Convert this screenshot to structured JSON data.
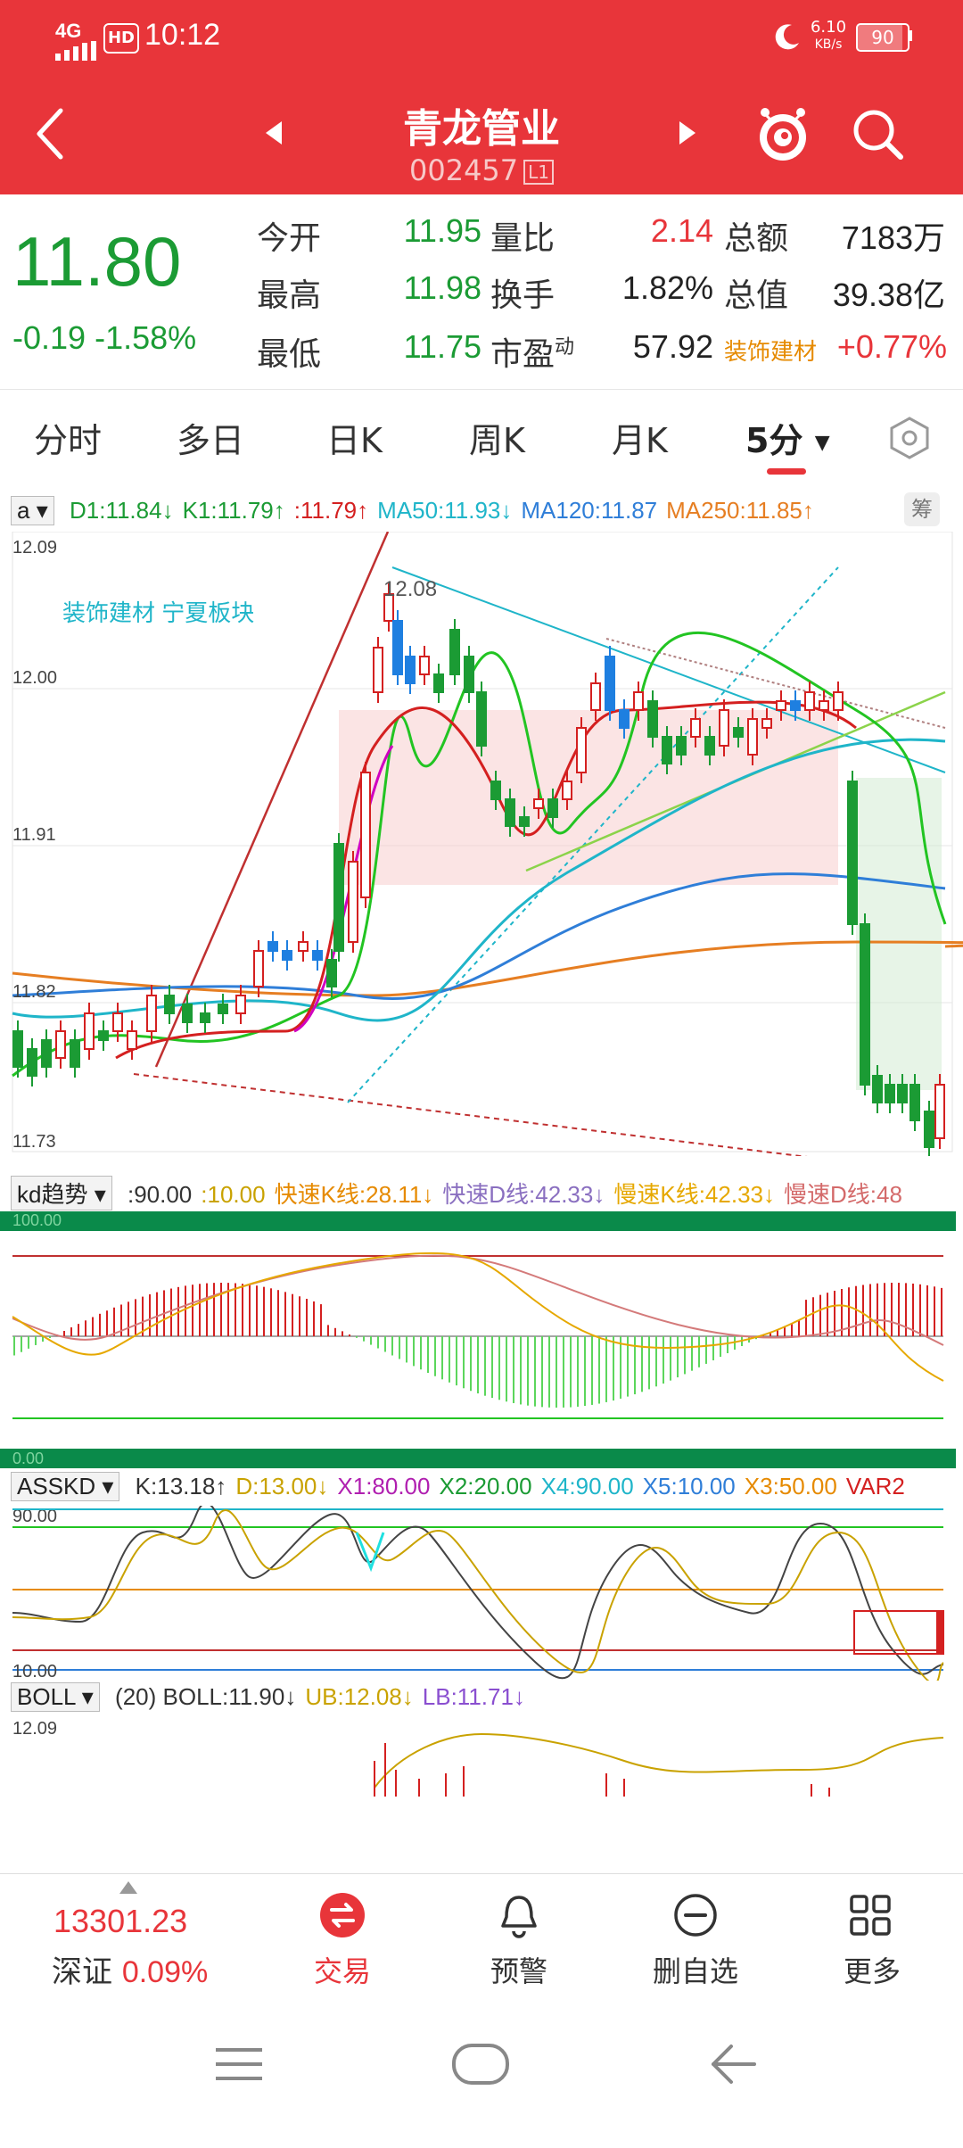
{
  "status_bar": {
    "network": "4G",
    "hd": "HD",
    "time": "10:12",
    "speed_value": "6.10",
    "speed_unit": "KB/s",
    "battery": "90",
    "battery_level": 0.9
  },
  "header": {
    "stock_name": "青龙管业",
    "stock_code": "002457",
    "level_badge": "L1"
  },
  "quote": {
    "price": "11.80",
    "change": "-0.19",
    "change_pct": "-1.58%",
    "open_label": "今开",
    "open": "11.95",
    "high_label": "最高",
    "high": "11.98",
    "low_label": "最低",
    "low": "11.75",
    "vol_ratio_label": "量比",
    "vol_ratio": "2.14",
    "turnover_label": "换手",
    "turnover": "1.82%",
    "pe_label": "市盈",
    "pe_sup": "动",
    "pe": "57.92",
    "amount_label": "总额",
    "amount": "7183万",
    "mktcap_label": "总值",
    "mktcap": "39.38亿",
    "sector_label": "装饰建材",
    "sector_chg": "+0.77%"
  },
  "tabs": [
    "分时",
    "多日",
    "日K",
    "周K",
    "月K",
    "5分"
  ],
  "main_chart": {
    "selector": "a",
    "legend": [
      {
        "text": "D1:11.84↓",
        "color": "#1b9b34"
      },
      {
        "text": "K1:11.79↑",
        "color": "#1b9b34"
      },
      {
        "text": ":11.79↑",
        "color": "#d42020"
      },
      {
        "text": "MA50:11.93↓",
        "color": "#1fb5c9"
      },
      {
        "text": "MA120:11.87",
        "color": "#2f7ed8"
      },
      {
        "text": "MA250:11.85↑",
        "color": "#e67e22"
      }
    ],
    "chip_button": "筹",
    "annotation": "装饰建材 宁夏板块",
    "high_mark": "12.08",
    "y_ticks": [
      "12.09",
      "12.00",
      "11.91",
      "11.82",
      "11.73"
    ]
  },
  "kd_panel": {
    "selector": "kd趋势",
    "legend": [
      {
        "text": ":90.00",
        "color": "#333333"
      },
      {
        "text": ":10.00",
        "color": "#c9a200"
      },
      {
        "text": "快速K线:28.11↓",
        "color": "#e68a00"
      },
      {
        "text": "快速D线:42.33↓",
        "color": "#8a6fc0"
      },
      {
        "text": "慢速K线:42.33↓",
        "color": "#e6a800"
      },
      {
        "text": "慢速D线:48",
        "color": "#d46a6a"
      }
    ],
    "top_label": "100.00",
    "bottom_label": "0.00"
  },
  "asskd_panel": {
    "selector": "ASSKD",
    "legend": [
      {
        "text": "K:13.18↑",
        "color": "#333333"
      },
      {
        "text": "D:13.00↓",
        "color": "#c9a200"
      },
      {
        "text": "X1:80.00",
        "color": "#b01fb0"
      },
      {
        "text": "X2:20.00",
        "color": "#1b9b34"
      },
      {
        "text": "X4:90.00",
        "color": "#1fb5c9"
      },
      {
        "text": "X5:10.00",
        "color": "#2f7ed8"
      },
      {
        "text": "X3:50.00",
        "color": "#e68a00"
      },
      {
        "text": "VAR2",
        "color": "#d42020"
      }
    ],
    "top_label": "90.00",
    "bottom_label": "10.00"
  },
  "boll_panel": {
    "selector": "BOLL",
    "legend": [
      {
        "text": "(20) BOLL:11.90↓",
        "color": "#333333"
      },
      {
        "text": "UB:12.08↓",
        "color": "#c9a200"
      },
      {
        "text": "LB:11.71↓",
        "color": "#8a4fd0"
      }
    ],
    "top_label": "12.09"
  },
  "toolbar": {
    "index_value": "13301.23",
    "index_name": "深证",
    "index_chg": "0.09%",
    "trade": "交易",
    "alert": "预警",
    "remove_watch": "删自选",
    "more": "更多"
  }
}
